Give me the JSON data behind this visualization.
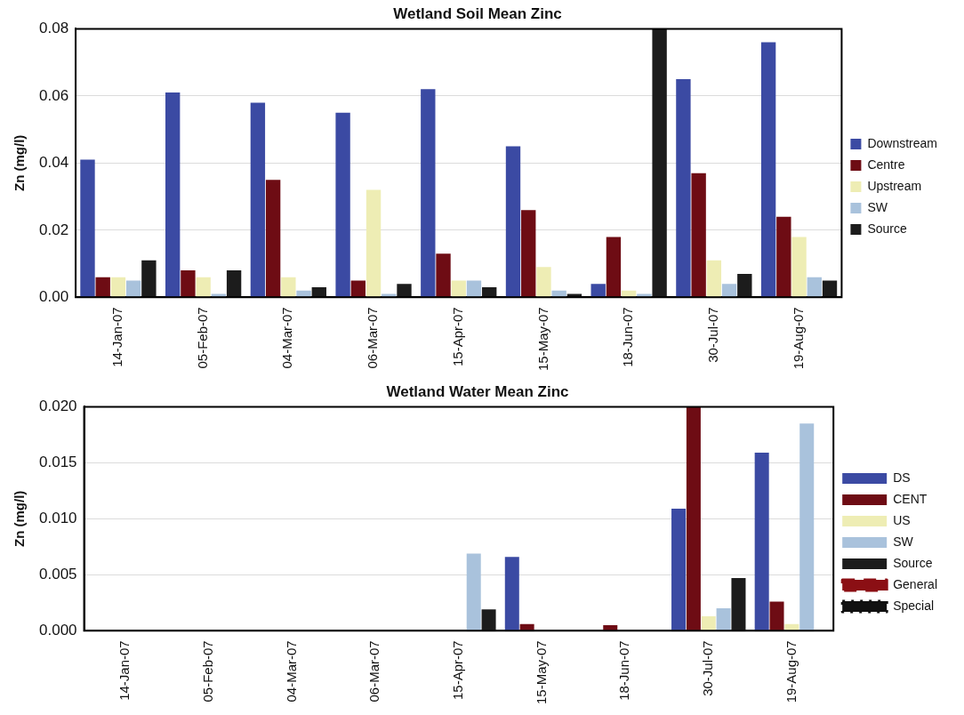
{
  "chart_data": [
    {
      "type": "bar",
      "title": "Wetland Soil Mean Zinc",
      "ylabel": "Zn (mg/l)",
      "categories": [
        "14-Jan-07",
        "05-Feb-07",
        "04-Mar-07",
        "06-Mar-07",
        "15-Apr-07",
        "15-May-07",
        "18-Jun-07",
        "30-Jul-07",
        "19-Aug-07"
      ],
      "series": [
        {
          "name": "Downstream",
          "color": "#3b4aa3",
          "values": [
            0.041,
            0.061,
            0.058,
            0.055,
            0.062,
            0.045,
            0.004,
            0.065,
            0.076
          ]
        },
        {
          "name": "Centre",
          "color": "#6e0c14",
          "values": [
            0.006,
            0.008,
            0.035,
            0.005,
            0.013,
            0.026,
            0.018,
            0.037,
            0.024
          ]
        },
        {
          "name": "Upstream",
          "color": "#eeedb4",
          "values": [
            0.006,
            0.006,
            0.006,
            0.032,
            0.005,
            0.009,
            0.002,
            0.011,
            0.018
          ]
        },
        {
          "name": "SW",
          "color": "#a9c2dc",
          "values": [
            0.005,
            0.001,
            0.002,
            0.001,
            0.005,
            0.002,
            0.001,
            0.004,
            0.006
          ]
        },
        {
          "name": "Source",
          "color": "#1c1c1c",
          "values": [
            0.011,
            0.008,
            0.003,
            0.004,
            0.003,
            0.001,
            0.08,
            0.007,
            0.005
          ]
        }
      ],
      "ylim": [
        0,
        0.08
      ],
      "yticks": [
        {
          "value": 0,
          "label": "0.00"
        },
        {
          "value": 0.02,
          "label": "0.02"
        },
        {
          "value": 0.04,
          "label": "0.04"
        },
        {
          "value": 0.06,
          "label": "0.06"
        },
        {
          "value": 0.08,
          "label": "0.08"
        }
      ],
      "grid": "y",
      "legend": "right"
    },
    {
      "type": "bar",
      "title": "Wetland Water Mean Zinc",
      "ylabel": "Zn (mg/l)",
      "categories": [
        "14-Jan-07",
        "05-Feb-07",
        "04-Mar-07",
        "06-Mar-07",
        "15-Apr-07",
        "15-May-07",
        "18-Jun-07",
        "30-Jul-07",
        "19-Aug-07"
      ],
      "series": [
        {
          "name": "DS",
          "color": "#3b4aa3",
          "values": [
            null,
            null,
            null,
            null,
            null,
            0.0066,
            null,
            0.0109,
            0.0159
          ]
        },
        {
          "name": "CENT",
          "color": "#6e0c14",
          "values": [
            null,
            null,
            null,
            null,
            null,
            0.0006,
            0.0005,
            0.02,
            0.0026
          ]
        },
        {
          "name": "US",
          "color": "#eeedb4",
          "values": [
            null,
            null,
            null,
            null,
            null,
            null,
            null,
            0.0013,
            0.0006
          ]
        },
        {
          "name": "SW",
          "color": "#a9c2dc",
          "values": [
            null,
            null,
            null,
            null,
            0.0069,
            null,
            null,
            0.002,
            0.0185
          ]
        },
        {
          "name": "Source",
          "color": "#1c1c1c",
          "values": [
            null,
            null,
            null,
            null,
            0.0019,
            null,
            null,
            0.0047,
            null
          ]
        },
        {
          "name": "General",
          "type": "line",
          "line_style": "dashed",
          "color": "#8b0f14",
          "values": [
            null,
            null,
            null,
            null,
            null,
            null,
            null,
            null,
            null
          ]
        },
        {
          "name": "Special",
          "type": "line",
          "line_style": "dotted",
          "color": "#111111",
          "values": [
            null,
            null,
            null,
            null,
            null,
            null,
            null,
            null,
            null
          ]
        }
      ],
      "ylim": [
        0,
        0.02
      ],
      "yticks": [
        {
          "value": 0,
          "label": "0.000"
        },
        {
          "value": 0.005,
          "label": "0.005"
        },
        {
          "value": 0.01,
          "label": "0.010"
        },
        {
          "value": 0.015,
          "label": "0.015"
        },
        {
          "value": 0.02,
          "label": "0.020"
        }
      ],
      "grid": "y",
      "legend": "right"
    }
  ]
}
